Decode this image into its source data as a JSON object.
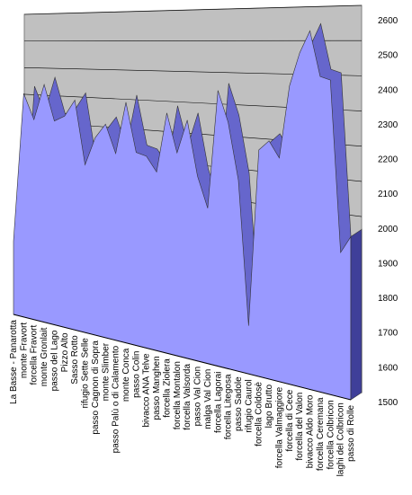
{
  "chart_data": {
    "type": "area3d",
    "categories": [
      "La Basse - Panarotta",
      "monte Fravort",
      "forcella Fravort",
      "monte Gronlait",
      "passo del Lago",
      "Pizzo Alto",
      "Sasso Rotto",
      "rifugio Sette Selle",
      "passo Cagnon di Sopra",
      "monte Slimber",
      "passo Palù o di Calamento",
      "monte Conca",
      "passo Colin",
      "bivacco ANA Telve",
      "passo Manghen",
      "forcella Ziolera",
      "forcella Montalon",
      "forcella Valsorda",
      "passo Val Cion",
      "malga Val Cion",
      "forcella Lagorai",
      "forcella Litegosa",
      "passo Sadole",
      "rifugio Caurol",
      "forcella Coldosè",
      "lago Brutto",
      "forcella Valmaggiore",
      "forcella di Cece",
      "forcella del Valon",
      "bivacco Aldo Moro",
      "forcella Ceremana",
      "forcella Colbricon",
      "laghi del Colbricon",
      "passo di Rolle"
    ],
    "values": [
      1780,
      2347,
      2250,
      2383,
      2250,
      2270,
      2330,
      2100,
      2200,
      2250,
      2150,
      2330,
      2160,
      2150,
      2100,
      2300,
      2170,
      2280,
      2100,
      2000,
      2380,
      2280,
      2100,
      1650,
      2200,
      2230,
      2180,
      2400,
      2500,
      2565,
      2430,
      2420,
      1920,
      1970
    ],
    "color": "#9999ff",
    "top_color": "#6666cc",
    "wall_color": "#c0c0c0",
    "ylim": [
      1500,
      2600
    ],
    "yticks": [
      1500,
      1600,
      1700,
      1800,
      1900,
      2000,
      2100,
      2200,
      2300,
      2400,
      2500,
      2600
    ],
    "grid": true
  }
}
